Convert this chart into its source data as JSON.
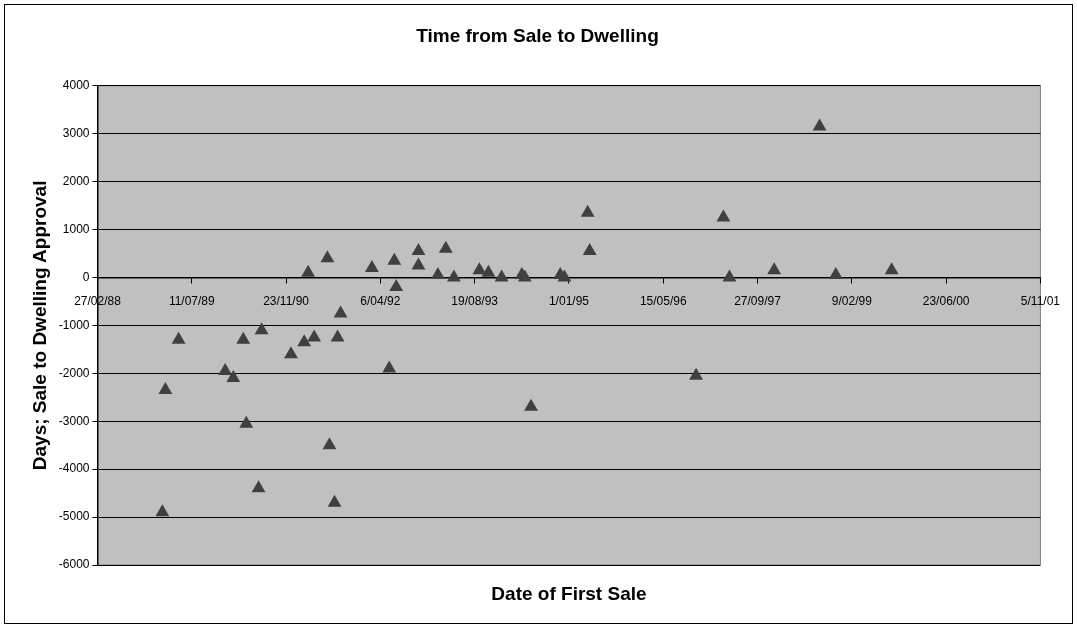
{
  "chart_data": {
    "type": "scatter",
    "title": "Time from Sale to Dwelling",
    "xlabel": "Date of First Sale",
    "ylabel": "Days; Sale to Dwelling Approval",
    "x": [
      "1989-02-05",
      "1989-02-21",
      "1989-05-02",
      "1990-01-04",
      "1990-02-16",
      "1990-04-10",
      "1990-04-26",
      "1990-06-30",
      "1990-07-16",
      "1990-12-19",
      "1991-02-27",
      "1991-03-20",
      "1991-04-21",
      "1991-06-30",
      "1991-07-11",
      "1991-08-07",
      "1991-08-23",
      "1991-09-08",
      "1992-02-21",
      "1992-05-23",
      "1992-06-19",
      "1992-06-29",
      "1992-10-25",
      "1992-10-25",
      "1993-02-05",
      "1993-03-19",
      "1993-05-01",
      "1993-09-13",
      "1993-10-31",
      "1994-01-09",
      "1994-04-26",
      "1994-05-12",
      "1994-06-14",
      "1994-11-16",
      "1994-12-08",
      "1995-04-10",
      "1995-04-21",
      "1996-11-05",
      "1997-03-30",
      "1997-05-01",
      "1997-12-24",
      "1998-08-22",
      "1998-11-16",
      "1999-09-08"
    ],
    "values": [
      -4900,
      -2350,
      -1300,
      -1950,
      -2100,
      -1300,
      -3050,
      -4400,
      -1100,
      -1600,
      -1350,
      100,
      -1250,
      400,
      -3500,
      -4700,
      -1250,
      -750,
      200,
      -1900,
      350,
      -200,
      550,
      250,
      50,
      600,
      0,
      150,
      100,
      0,
      50,
      0,
      -2700,
      50,
      0,
      1350,
      550,
      -2050,
      1250,
      0,
      150,
      3150,
      50,
      150
    ],
    "color": "#404040",
    "marker": "triangle",
    "xlim": [
      "1988-02-27",
      "2001-11-05"
    ],
    "xticks": [
      {
        "value": "1988-02-27",
        "label": "27/02/88"
      },
      {
        "value": "1989-07-11",
        "label": "11/07/89"
      },
      {
        "value": "1990-11-23",
        "label": "23/11/90"
      },
      {
        "value": "1992-04-06",
        "label": "6/04/92"
      },
      {
        "value": "1993-08-19",
        "label": "19/08/93"
      },
      {
        "value": "1995-01-01",
        "label": "1/01/95"
      },
      {
        "value": "1996-05-15",
        "label": "15/05/96"
      },
      {
        "value": "1997-09-27",
        "label": "27/09/97"
      },
      {
        "value": "1999-02-09",
        "label": "9/02/99"
      },
      {
        "value": "2000-06-23",
        "label": "23/06/00"
      },
      {
        "value": "2001-11-05",
        "label": "5/11/01"
      }
    ],
    "ylim": [
      -6000,
      4000
    ],
    "yticks": [
      -6000,
      -5000,
      -4000,
      -3000,
      -2000,
      -1000,
      0,
      1000,
      2000,
      3000,
      4000
    ],
    "grid": "y"
  }
}
